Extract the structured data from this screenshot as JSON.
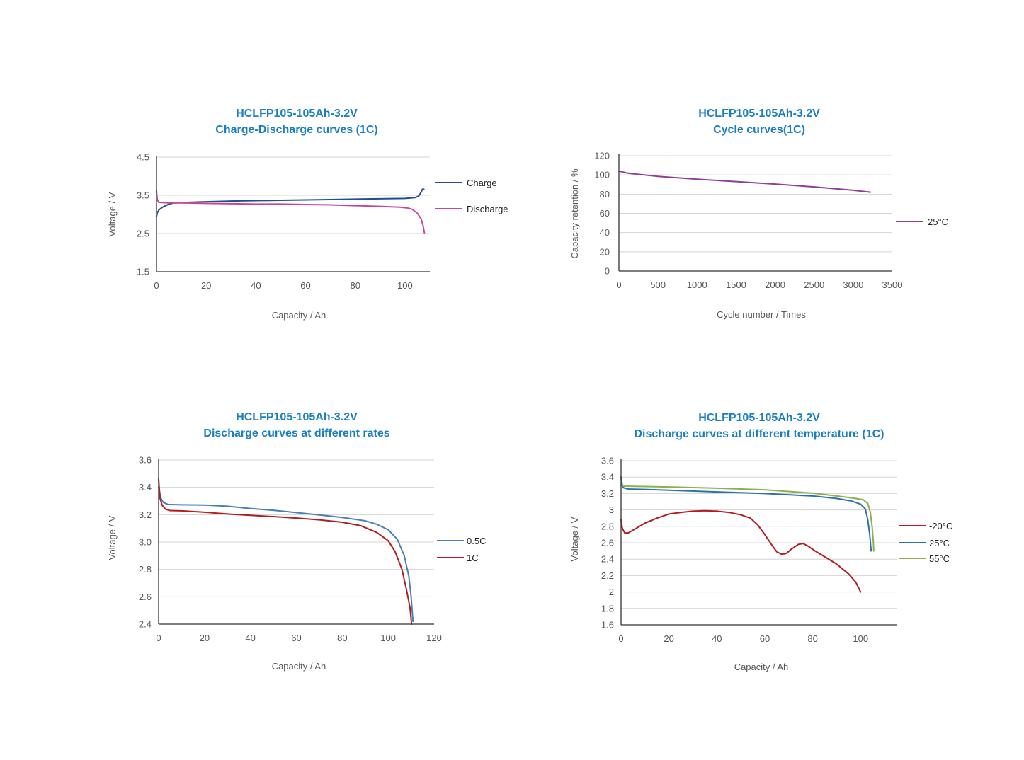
{
  "colors": {
    "title": "#1a7fbf",
    "charge": "#1f4e96",
    "discharge": "#c6479a",
    "cycle_25c": "#8e3e96",
    "rate_05c": "#4a7fb5",
    "rate_1c": "#b01e23",
    "temp_minus20": "#b01e23",
    "temp_25": "#2a72ad",
    "temp_55": "#8db04a"
  },
  "chart_data": [
    {
      "id": "cd",
      "type": "line",
      "title_line1": "HCLFP105-105Ah-3.2V",
      "title_line2": "Charge-Discharge curves (1C)",
      "xlabel": "Capacity / Ah",
      "ylabel": "Voltage / V",
      "xlim": [
        0,
        110
      ],
      "ylim": [
        1.5,
        4.5
      ],
      "xticks": [
        0,
        20,
        40,
        60,
        80,
        100
      ],
      "xtick_labels": [
        "0",
        "20",
        "40",
        "60",
        "80",
        "100"
      ],
      "yticks": [
        1.5,
        2.5,
        3.5,
        4.5
      ],
      "ytick_labels": [
        "1.5",
        "2.5",
        "3.5",
        "4.5"
      ],
      "grid": true,
      "legend_position": "right",
      "series": [
        {
          "name": "Charge",
          "color": "#1f4e96",
          "points": [
            [
              0,
              2.95
            ],
            [
              0.4,
              3.05
            ],
            [
              1,
              3.12
            ],
            [
              2,
              3.17
            ],
            [
              3,
              3.21
            ],
            [
              4,
              3.24
            ],
            [
              5,
              3.27
            ],
            [
              7,
              3.3
            ],
            [
              10,
              3.31
            ],
            [
              20,
              3.33
            ],
            [
              30,
              3.35
            ],
            [
              40,
              3.36
            ],
            [
              50,
              3.37
            ],
            [
              60,
              3.38
            ],
            [
              70,
              3.39
            ],
            [
              80,
              3.4
            ],
            [
              90,
              3.41
            ],
            [
              100,
              3.42
            ],
            [
              104,
              3.44
            ],
            [
              105.5,
              3.48
            ],
            [
              106.5,
              3.58
            ],
            [
              107,
              3.66
            ],
            [
              107.6,
              3.66
            ]
          ]
        },
        {
          "name": "Discharge",
          "color": "#c6479a",
          "points": [
            [
              0,
              3.62
            ],
            [
              0.3,
              3.4
            ],
            [
              0.8,
              3.32
            ],
            [
              2,
              3.31
            ],
            [
              5,
              3.3
            ],
            [
              10,
              3.3
            ],
            [
              20,
              3.29
            ],
            [
              30,
              3.28
            ],
            [
              40,
              3.27
            ],
            [
              50,
              3.27
            ],
            [
              60,
              3.26
            ],
            [
              70,
              3.25
            ],
            [
              80,
              3.23
            ],
            [
              90,
              3.21
            ],
            [
              98,
              3.19
            ],
            [
              101,
              3.17
            ],
            [
              103,
              3.13
            ],
            [
              105,
              3.03
            ],
            [
              106.5,
              2.88
            ],
            [
              107.3,
              2.7
            ],
            [
              107.8,
              2.52
            ]
          ]
        }
      ]
    },
    {
      "id": "cycle",
      "type": "line",
      "title_line1": "HCLFP105-105Ah-3.2V",
      "title_line2": "Cycle curves(1C)",
      "xlabel": "Cycle number / Times",
      "ylabel": "Capacity retention / %",
      "xlim": [
        0,
        3500
      ],
      "ylim": [
        0,
        120
      ],
      "xticks": [
        0,
        500,
        1000,
        1500,
        2000,
        2500,
        3000,
        3500
      ],
      "xtick_labels": [
        "0",
        "500",
        "1000",
        "1500",
        "2000",
        "2500",
        "3000",
        "3500"
      ],
      "yticks": [
        0,
        20,
        40,
        60,
        80,
        100,
        120
      ],
      "ytick_labels": [
        "0",
        "20",
        "40",
        "60",
        "80",
        "100",
        "120"
      ],
      "grid": true,
      "legend_position": "right",
      "series": [
        {
          "name": "25°C",
          "color": "#8e3e96",
          "points": [
            [
              0,
              104
            ],
            [
              100,
              102
            ],
            [
              200,
              101
            ],
            [
              500,
              98.5
            ],
            [
              1000,
              95.5
            ],
            [
              1500,
              93
            ],
            [
              2000,
              90.5
            ],
            [
              2500,
              87.5
            ],
            [
              3000,
              84
            ],
            [
              3220,
              82
            ]
          ]
        }
      ]
    },
    {
      "id": "rates",
      "type": "line",
      "title_line1": "HCLFP105-105Ah-3.2V",
      "title_line2": "Discharge curves at different rates",
      "xlabel": "Capacity / Ah",
      "ylabel": "Voltage / V",
      "xlim": [
        0,
        120
      ],
      "ylim": [
        2.4,
        3.6
      ],
      "xticks": [
        0,
        20,
        40,
        60,
        80,
        100,
        120
      ],
      "xtick_labels": [
        "0",
        "20",
        "40",
        "60",
        "80",
        "100",
        "120"
      ],
      "yticks": [
        2.4,
        2.6,
        2.8,
        3.0,
        3.2,
        3.4,
        3.6
      ],
      "ytick_labels": [
        "2.4",
        "2.6",
        "2.8",
        "3.0",
        "3.2",
        "3.4",
        "3.6"
      ],
      "grid": true,
      "legend_position": "right",
      "series": [
        {
          "name": "0.5C",
          "color": "#4a7fb5",
          "points": [
            [
              0,
              3.4
            ],
            [
              1,
              3.32
            ],
            [
              2,
              3.29
            ],
            [
              4,
              3.275
            ],
            [
              10,
              3.272
            ],
            [
              20,
              3.27
            ],
            [
              30,
              3.262
            ],
            [
              40,
              3.245
            ],
            [
              50,
              3.232
            ],
            [
              60,
              3.215
            ],
            [
              70,
              3.198
            ],
            [
              80,
              3.18
            ],
            [
              90,
              3.155
            ],
            [
              95,
              3.13
            ],
            [
              100,
              3.09
            ],
            [
              104,
              3.02
            ],
            [
              107,
              2.9
            ],
            [
              109,
              2.75
            ],
            [
              110,
              2.6
            ],
            [
              110.8,
              2.42
            ]
          ]
        },
        {
          "name": "1C",
          "color": "#b01e23",
          "points": [
            [
              0,
              3.46
            ],
            [
              0.6,
              3.32
            ],
            [
              1.5,
              3.27
            ],
            [
              3,
              3.24
            ],
            [
              5,
              3.23
            ],
            [
              10,
              3.228
            ],
            [
              20,
              3.218
            ],
            [
              30,
              3.205
            ],
            [
              40,
              3.195
            ],
            [
              50,
              3.186
            ],
            [
              60,
              3.175
            ],
            [
              70,
              3.162
            ],
            [
              80,
              3.145
            ],
            [
              88,
              3.12
            ],
            [
              95,
              3.07
            ],
            [
              100,
              3.01
            ],
            [
              103,
              2.93
            ],
            [
              106,
              2.8
            ],
            [
              108,
              2.65
            ],
            [
              109.5,
              2.52
            ],
            [
              110.2,
              2.4
            ]
          ]
        }
      ]
    },
    {
      "id": "temps",
      "type": "line",
      "title_line1": "HCLFP105-105Ah-3.2V",
      "title_line2": "Discharge curves at different temperature (1C)",
      "xlabel": "Capacity / Ah",
      "ylabel": "Voltage / V",
      "xlim": [
        0,
        115
      ],
      "ylim": [
        1.6,
        3.6
      ],
      "xticks": [
        0,
        20,
        40,
        60,
        80,
        100
      ],
      "xtick_labels": [
        "0",
        "20",
        "40",
        "60",
        "80",
        "100"
      ],
      "yticks": [
        1.6,
        1.8,
        2.0,
        2.2,
        2.4,
        2.6,
        2.8,
        3.0,
        3.2,
        3.4,
        3.6
      ],
      "ytick_labels": [
        "1.6",
        "1.8",
        "2",
        "2.2",
        "2.4",
        "2.6",
        "2.8",
        "3",
        "3.2",
        "3.4",
        "3.6"
      ],
      "grid": true,
      "legend_position": "right",
      "series": [
        {
          "name": "-20°C",
          "color": "#b01e23",
          "points": [
            [
              0,
              2.88
            ],
            [
              0.5,
              2.78
            ],
            [
              1.5,
              2.72
            ],
            [
              3,
              2.72
            ],
            [
              6,
              2.77
            ],
            [
              10,
              2.84
            ],
            [
              15,
              2.9
            ],
            [
              20,
              2.95
            ],
            [
              25,
              2.97
            ],
            [
              30,
              2.985
            ],
            [
              35,
              2.99
            ],
            [
              40,
              2.985
            ],
            [
              45,
              2.97
            ],
            [
              50,
              2.94
            ],
            [
              54,
              2.9
            ],
            [
              57,
              2.82
            ],
            [
              60,
              2.7
            ],
            [
              63,
              2.57
            ],
            [
              65,
              2.49
            ],
            [
              67,
              2.46
            ],
            [
              69,
              2.47
            ],
            [
              71,
              2.52
            ],
            [
              74,
              2.58
            ],
            [
              76,
              2.59
            ],
            [
              78,
              2.56
            ],
            [
              81,
              2.5
            ],
            [
              85,
              2.43
            ],
            [
              90,
              2.34
            ],
            [
              95,
              2.22
            ],
            [
              98,
              2.12
            ],
            [
              100,
              2.0
            ]
          ]
        },
        {
          "name": "25°C",
          "color": "#2a72ad",
          "points": [
            [
              0,
              3.4
            ],
            [
              0.5,
              3.3
            ],
            [
              1,
              3.27
            ],
            [
              3,
              3.255
            ],
            [
              10,
              3.25
            ],
            [
              20,
              3.24
            ],
            [
              40,
              3.22
            ],
            [
              60,
              3.2
            ],
            [
              80,
              3.17
            ],
            [
              90,
              3.14
            ],
            [
              96,
              3.11
            ],
            [
              100,
              3.07
            ],
            [
              102,
              3.01
            ],
            [
              103,
              2.88
            ],
            [
              103.8,
              2.7
            ],
            [
              104.4,
              2.5
            ]
          ]
        },
        {
          "name": "55°C",
          "color": "#8db04a",
          "points": [
            [
              0,
              3.3
            ],
            [
              1,
              3.29
            ],
            [
              10,
              3.285
            ],
            [
              20,
              3.28
            ],
            [
              40,
              3.265
            ],
            [
              60,
              3.245
            ],
            [
              80,
              3.205
            ],
            [
              90,
              3.17
            ],
            [
              98,
              3.14
            ],
            [
              101,
              3.125
            ],
            [
              103,
              3.08
            ],
            [
              104,
              2.98
            ],
            [
              104.8,
              2.8
            ],
            [
              105.3,
              2.62
            ],
            [
              105.5,
              2.5
            ]
          ]
        }
      ]
    }
  ]
}
